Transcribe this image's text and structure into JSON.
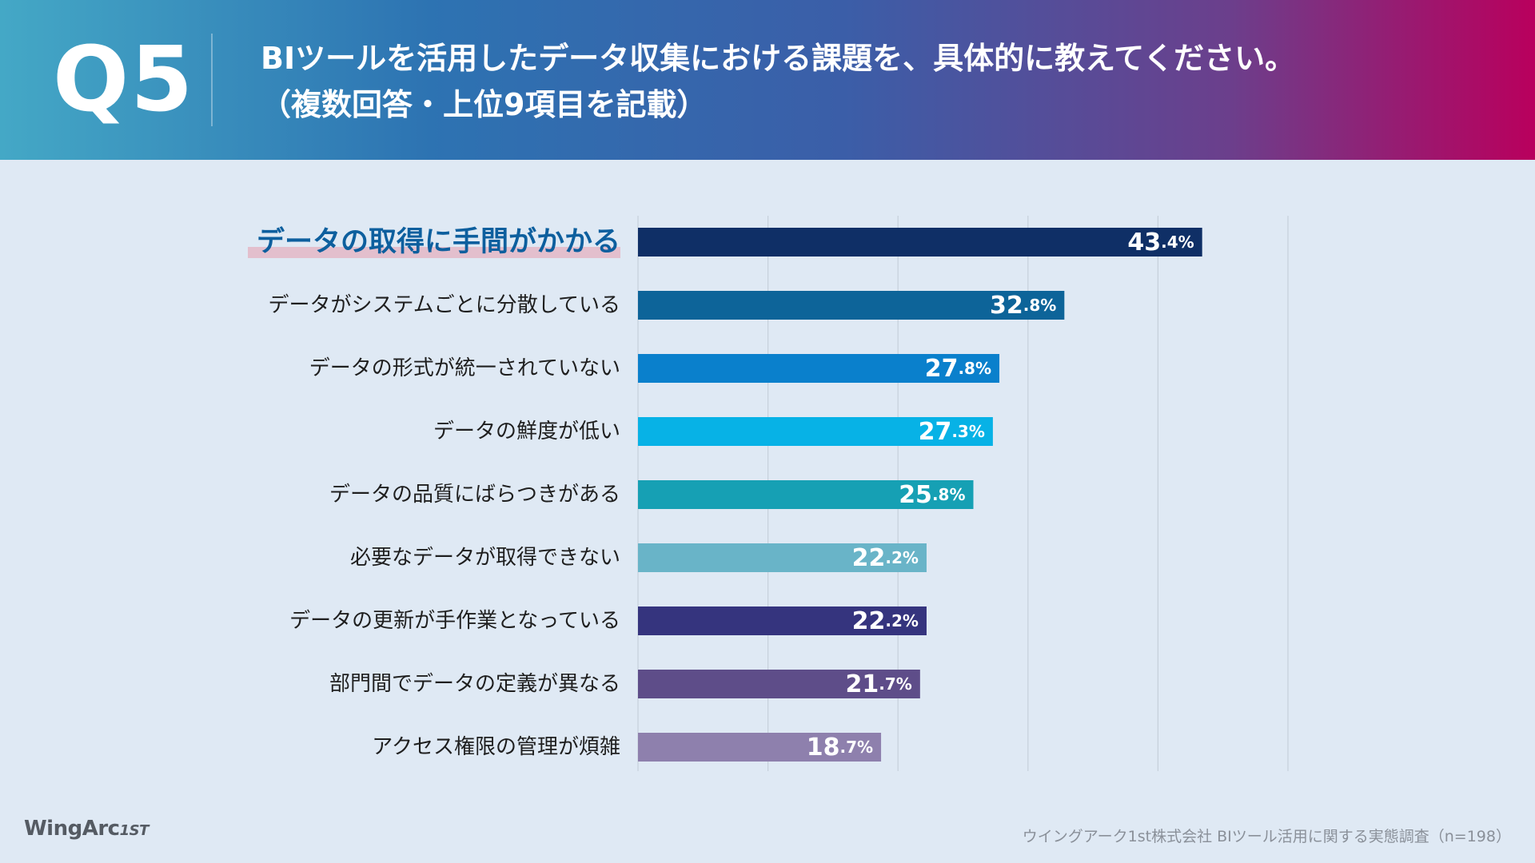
{
  "header": {
    "question_number": "Q5",
    "title_line1": "BIツールを活用したデータ収集における課題を、具体的に教えてください。",
    "title_line2": "（複数回答・上位9項目を記載）"
  },
  "chart_data": {
    "type": "bar",
    "orientation": "horizontal",
    "title": "BIツールを活用したデータ収集における課題を、具体的に教えてください。（複数回答・上位9項目を記載）",
    "xlabel": "",
    "ylabel": "",
    "xlim": [
      0,
      50
    ],
    "grid": true,
    "value_suffix": "%",
    "highlight_index": 0,
    "categories": [
      "データの取得に手間がかかる",
      "データがシステムごとに分散している",
      "データの形式が統一されていない",
      "データの鮮度が低い",
      "データの品質にばらつきがある",
      "必要なデータが取得できない",
      "データの更新が手作業となっている",
      "部門間でデータの定義が異なる",
      "アクセス権限の管理が煩雑"
    ],
    "values": [
      43.4,
      32.8,
      27.8,
      27.3,
      25.8,
      22.2,
      22.2,
      21.7,
      18.7
    ],
    "colors": [
      "#0f2f66",
      "#0d6499",
      "#0a80cc",
      "#07b2e6",
      "#16a0b4",
      "#69b4c8",
      "#35347e",
      "#5e4d89",
      "#8e80ad"
    ],
    "highlight_color": "#0d5f9e",
    "highlight_underline_color": "#e3bfcd"
  },
  "footer": {
    "logo_text": "WingArc",
    "logo_suffix": "1ST",
    "source": "ウイングアーク1st株式会社  BIツール活用に関する実態調査（n=198）"
  }
}
